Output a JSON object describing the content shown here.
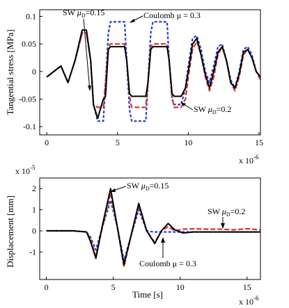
{
  "chart_data": [
    {
      "type": "line",
      "ylabel": "Tangential stress [MPa]",
      "xlabel": "",
      "x_multiplier": "x 10",
      "x_multiplier_exp": "-6",
      "xlim": [
        -0.5,
        15.1
      ],
      "ylim": [
        -0.115,
        0.112
      ],
      "xticks": [
        0,
        5,
        10,
        15
      ],
      "xtick_labels": [
        "0",
        "5",
        "10",
        "15"
      ],
      "yticks": [
        0.1,
        0.05,
        0,
        -0.05,
        -0.1
      ],
      "ytick_labels": [
        "0.1",
        "0.05",
        "0",
        "-0.05",
        "-0.1"
      ],
      "grid": false,
      "series": [
        {
          "name": "",
          "color": "#1f3fd8",
          "dash": "4,2.5",
          "x": [
            0,
            0.5,
            1,
            1.5,
            2,
            2.5,
            2.8,
            3.1,
            3.3,
            3.6,
            4,
            4.15,
            4.35,
            4.5,
            5,
            5.5,
            5.65,
            5.85,
            6,
            6.5,
            7,
            7.15,
            7.35,
            7.5,
            8,
            8.5,
            8.65,
            8.85,
            9,
            9.5,
            9.8,
            10,
            10.3,
            10.6,
            10.9,
            11.2,
            11.5,
            11.8,
            12.1,
            12.4,
            12.7,
            13,
            13.3,
            13.6,
            13.9,
            14.2,
            14.5,
            14.8,
            15.1
          ],
          "y": [
            -0.01,
            0.0,
            0.01,
            -0.02,
            0.02,
            0.07,
            0.07,
            0.02,
            -0.06,
            -0.09,
            -0.09,
            -0.02,
            0.07,
            0.09,
            0.09,
            0.09,
            0.02,
            -0.07,
            -0.09,
            -0.09,
            -0.09,
            -0.02,
            0.07,
            0.09,
            0.09,
            0.09,
            0.02,
            -0.05,
            -0.06,
            -0.06,
            -0.03,
            0.01,
            0.06,
            0.065,
            0.04,
            0.0,
            -0.02,
            0.01,
            0.045,
            0.05,
            0.02,
            -0.015,
            -0.03,
            0.0,
            0.04,
            0.045,
            0.03,
            0.0,
            -0.01
          ]
        },
        {
          "name": "",
          "color": "#d8342b",
          "dash": "7,3",
          "x": [
            0,
            0.5,
            1,
            1.5,
            2,
            2.5,
            2.8,
            3.1,
            3.3,
            3.6,
            4,
            4.15,
            4.35,
            4.5,
            5,
            5.5,
            5.65,
            5.85,
            6,
            6.5,
            7,
            7.15,
            7.35,
            7.5,
            8,
            8.5,
            8.65,
            8.85,
            9,
            9.5,
            9.8,
            10,
            10.3,
            10.6,
            10.9,
            11.2,
            11.5,
            11.8,
            12.1,
            12.4,
            12.7,
            13,
            13.3,
            13.6,
            13.9,
            14.2,
            14.5,
            14.8,
            15.1
          ],
          "y": [
            -0.01,
            0.0,
            0.01,
            -0.02,
            0.02,
            0.07,
            0.07,
            0.02,
            -0.06,
            -0.065,
            -0.065,
            -0.02,
            0.045,
            0.05,
            0.05,
            0.05,
            0.02,
            -0.045,
            -0.065,
            -0.065,
            -0.065,
            -0.02,
            0.045,
            0.05,
            0.05,
            0.05,
            0.02,
            -0.045,
            -0.065,
            -0.065,
            -0.05,
            -0.01,
            0.04,
            0.055,
            0.03,
            -0.01,
            -0.035,
            -0.01,
            0.03,
            0.045,
            0.02,
            -0.02,
            -0.035,
            -0.01,
            0.03,
            0.04,
            0.025,
            0.0,
            -0.015
          ]
        },
        {
          "name": "",
          "color": "#000000",
          "dash": "",
          "x": [
            0,
            0.5,
            1,
            1.5,
            2,
            2.5,
            2.8,
            3.1,
            3.3,
            3.6,
            4,
            4.15,
            4.35,
            4.5,
            5,
            5.5,
            5.65,
            5.85,
            6,
            6.5,
            7,
            7.15,
            7.35,
            7.5,
            8,
            8.5,
            8.65,
            8.85,
            9,
            9.5,
            9.8,
            10,
            10.3,
            10.6,
            10.9,
            11.2,
            11.5,
            11.8,
            12.1,
            12.4,
            12.7,
            13,
            13.3,
            13.6,
            13.9,
            14.2,
            14.5,
            14.8,
            15.1
          ],
          "y": [
            -0.01,
            0.0,
            0.01,
            -0.02,
            0.02,
            0.075,
            0.075,
            0.02,
            -0.06,
            -0.085,
            -0.05,
            -0.045,
            0.04,
            0.045,
            0.045,
            0.045,
            0.02,
            -0.04,
            -0.045,
            -0.045,
            -0.045,
            -0.02,
            0.04,
            0.045,
            0.045,
            0.045,
            0.02,
            -0.04,
            -0.045,
            -0.045,
            -0.03,
            0.0,
            0.05,
            0.06,
            0.03,
            -0.005,
            -0.03,
            0.0,
            0.035,
            0.045,
            0.02,
            -0.02,
            -0.03,
            -0.005,
            0.035,
            0.04,
            0.025,
            0.0,
            -0.01
          ]
        }
      ],
      "annotations": [
        {
          "label": "SW",
          "mu": "μ",
          "sub": "D",
          "value": "=0.15"
        },
        {
          "label": "Coulomb μ = 0.3"
        },
        {
          "label": "SW",
          "mu": "μ",
          "sub": "D",
          "value": "=0.2"
        }
      ]
    },
    {
      "type": "line",
      "ylabel": "Displacement [mm]",
      "xlabel": "Time [s]",
      "y_multiplier": "x 10",
      "y_multiplier_exp": "-5",
      "x_multiplier": "x 10",
      "x_multiplier_exp": "-6",
      "xlim": [
        -0.5,
        16
      ],
      "ylim": [
        -2.3,
        2.5
      ],
      "xticks": [
        0,
        5,
        10,
        15
      ],
      "xtick_labels": [
        "0",
        "5",
        "10",
        "15"
      ],
      "yticks": [
        2,
        1,
        0,
        -1
      ],
      "ytick_labels": [
        "2",
        "1",
        "0",
        "-1"
      ],
      "grid": false,
      "series": [
        {
          "name": "",
          "color": "#1f3fd8",
          "dash": "4,2.5",
          "x": [
            0,
            2,
            3,
            3.3,
            3.7,
            4.2,
            4.8,
            5.3,
            5.8,
            6.3,
            6.9,
            7.5,
            8.0,
            8.5,
            9,
            10,
            11,
            12,
            13,
            14,
            15,
            16
          ],
          "y": [
            0,
            0,
            -0.05,
            -0.3,
            -0.9,
            0.2,
            1.45,
            0.2,
            -1.4,
            -0.3,
            1.0,
            0.0,
            -0.05,
            -0.05,
            -0.05,
            -0.05,
            -0.05,
            -0.05,
            -0.05,
            -0.05,
            -0.05,
            -0.05
          ]
        },
        {
          "name": "",
          "color": "#d8342b",
          "dash": "7,3",
          "x": [
            0,
            2,
            3,
            3.3,
            3.7,
            4.2,
            4.8,
            5.3,
            5.8,
            6.3,
            6.9,
            7.5,
            8.1,
            8.6,
            9.1,
            9.6,
            10.2,
            11,
            12,
            13,
            14,
            15,
            16
          ],
          "y": [
            0,
            0,
            -0.05,
            -0.4,
            -1.2,
            0.2,
            1.8,
            0.2,
            -1.7,
            -0.3,
            1.2,
            0.0,
            -0.55,
            0.0,
            0.2,
            0.0,
            0.08,
            0.1,
            0.08,
            0.08,
            0.05,
            0.1,
            0.05
          ]
        },
        {
          "name": "",
          "color": "#000000",
          "dash": "",
          "x": [
            0,
            2,
            3,
            3.3,
            3.7,
            4.2,
            4.8,
            5.3,
            5.8,
            6.3,
            6.9,
            7.5,
            8.1,
            8.6,
            9.1,
            9.6,
            10.2,
            11,
            12,
            13,
            14,
            15,
            16
          ],
          "y": [
            0,
            0,
            -0.05,
            -0.5,
            -1.3,
            0.3,
            2.0,
            0.2,
            -1.6,
            -0.3,
            1.3,
            0.0,
            -0.6,
            0.0,
            0.35,
            0.05,
            -0.1,
            -0.05,
            -0.05,
            -0.05,
            -0.05,
            -0.05,
            -0.05
          ]
        }
      ],
      "annotations": [
        {
          "label": "SW",
          "mu": "μ",
          "sub": "D",
          "value": "=0.15"
        },
        {
          "label": "SW",
          "mu": "μ",
          "sub": "D",
          "value": "=0.2"
        },
        {
          "label": "Coulomb μ = 0.3"
        }
      ]
    }
  ]
}
